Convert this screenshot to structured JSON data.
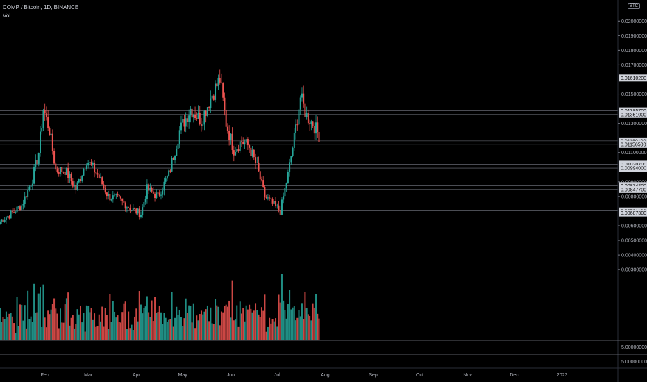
{
  "header": {
    "symbol_line": "COMP / Bitcoin, 1D, BINANCE",
    "volume_label": "Vol",
    "currency_badge": "BTC"
  },
  "colors": {
    "up": "#26a69a",
    "down": "#ef5350",
    "level_line": "#787b86",
    "axis_text": "#b2b5be",
    "background": "#000000"
  },
  "chart_data": {
    "type": "candlestick",
    "title": "COMP / Bitcoin, 1D, BINANCE",
    "y_axis": {
      "ticks": [
        "0.02000000",
        "0.01900000",
        "0.01800000",
        "0.01700000",
        "0.01500000",
        "0.01300000",
        "0.01100000",
        "0.00900000",
        "0.00800000",
        "0.00600000",
        "0.00500000",
        "0.00400000",
        "0.00300000"
      ],
      "ylim": [
        0.0022,
        0.0212
      ]
    },
    "x_axis": {
      "ticks": [
        "Feb",
        "Mar",
        "Apr",
        "May",
        "Jun",
        "Jul",
        "Aug",
        "Sep",
        "Oct",
        "Nov",
        "Dec",
        "2022"
      ],
      "range": [
        "2021-01-03",
        "2022-02-06"
      ]
    },
    "levels": [
      "0.01610200",
      "0.01385700",
      "0.01361000",
      "0.01180100",
      "0.01156500",
      "0.01020700",
      "0.00994000",
      "0.00874200",
      "0.00847700",
      "0.00701100",
      "0.00687300"
    ],
    "price_path": [
      {
        "date": "2021-01-03",
        "close": 0.0063
      },
      {
        "date": "2021-01-10",
        "close": 0.0068
      },
      {
        "date": "2021-01-17",
        "close": 0.0074
      },
      {
        "date": "2021-01-24",
        "close": 0.0092
      },
      {
        "date": "2021-01-28",
        "close": 0.011
      },
      {
        "date": "2021-01-31",
        "close": 0.014
      },
      {
        "date": "2021-02-04",
        "close": 0.0125
      },
      {
        "date": "2021-02-08",
        "close": 0.0098
      },
      {
        "date": "2021-02-14",
        "close": 0.0098
      },
      {
        "date": "2021-02-21",
        "close": 0.0085
      },
      {
        "date": "2021-02-28",
        "close": 0.0105
      },
      {
        "date": "2021-03-07",
        "close": 0.0095
      },
      {
        "date": "2021-03-14",
        "close": 0.008
      },
      {
        "date": "2021-03-21",
        "close": 0.0078
      },
      {
        "date": "2021-03-28",
        "close": 0.0072
      },
      {
        "date": "2021-04-04",
        "close": 0.0068
      },
      {
        "date": "2021-04-08",
        "close": 0.0085
      },
      {
        "date": "2021-04-15",
        "close": 0.008
      },
      {
        "date": "2021-04-22",
        "close": 0.0095
      },
      {
        "date": "2021-04-29",
        "close": 0.0125
      },
      {
        "date": "2021-05-06",
        "close": 0.014
      },
      {
        "date": "2021-05-13",
        "close": 0.0132
      },
      {
        "date": "2021-05-20",
        "close": 0.015
      },
      {
        "date": "2021-05-25",
        "close": 0.016
      },
      {
        "date": "2021-05-29",
        "close": 0.013
      },
      {
        "date": "2021-06-03",
        "close": 0.0112
      },
      {
        "date": "2021-06-08",
        "close": 0.0118
      },
      {
        "date": "2021-06-13",
        "close": 0.0114
      },
      {
        "date": "2021-06-18",
        "close": 0.01
      },
      {
        "date": "2021-06-23",
        "close": 0.008
      },
      {
        "date": "2021-06-28",
        "close": 0.0075
      },
      {
        "date": "2021-07-03",
        "close": 0.007
      },
      {
        "date": "2021-07-08",
        "close": 0.0095
      },
      {
        "date": "2021-07-12",
        "close": 0.012
      },
      {
        "date": "2021-07-16",
        "close": 0.0148
      },
      {
        "date": "2021-07-20",
        "close": 0.0135
      },
      {
        "date": "2021-07-24",
        "close": 0.013
      },
      {
        "date": "2021-07-28",
        "close": 0.0122
      }
    ],
    "volume": {
      "axis_labels": [
        "5.00000000",
        "5.00000000"
      ]
    }
  }
}
